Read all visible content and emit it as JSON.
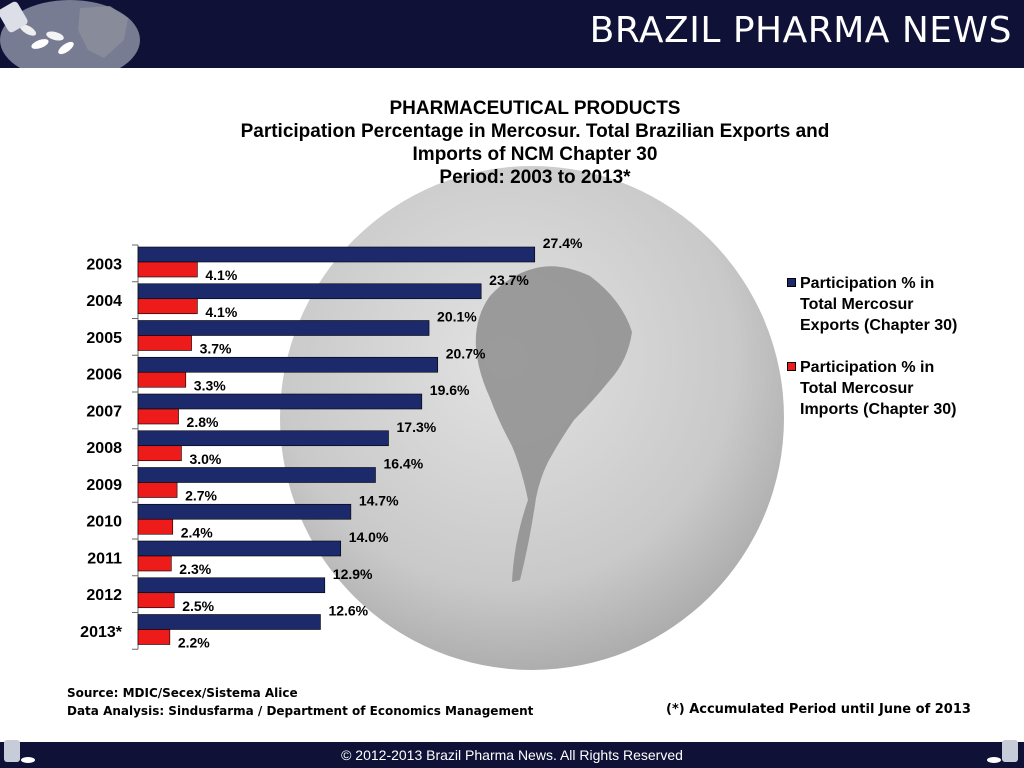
{
  "header": {
    "brand": "BRAZIL PHARMA NEWS"
  },
  "chart_data": {
    "type": "bar",
    "orientation": "horizontal",
    "title": [
      "PHARMACEUTICAL PRODUCTS",
      "Participation Percentage in Mercosur. Total  Brazilian Exports and",
      "Imports of NCM Chapter 30",
      "Period: 2003 to 2013*"
    ],
    "categories": [
      "2003",
      "2004",
      "2005",
      "2006",
      "2007",
      "2008",
      "2009",
      "2010",
      "2011",
      "2012",
      "2013*"
    ],
    "series": [
      {
        "name": "Participation % in Total Mercosur Exports (Chapter 30)",
        "color": "#1c2a6b",
        "values": [
          27.4,
          23.7,
          20.1,
          20.7,
          19.6,
          17.3,
          16.4,
          14.7,
          14.0,
          12.9,
          12.6
        ]
      },
      {
        "name": "Participation % in Total Mercosur Imports (Chapter 30)",
        "color": "#ee1b1b",
        "values": [
          4.1,
          4.1,
          3.7,
          3.3,
          2.8,
          3.0,
          2.7,
          2.4,
          2.3,
          2.5,
          2.2
        ]
      }
    ],
    "legend_lines": [
      [
        "Participation % in",
        "Total Mercosur",
        "Exports (Chapter 30)"
      ],
      [
        "Participation % in",
        "Total Mercosur",
        "Imports (Chapter 30)"
      ]
    ],
    "value_suffix": "%",
    "xlim": [
      0,
      28
    ],
    "grid": false,
    "legend_position": "right"
  },
  "source": {
    "line1": "Source: MDIC/Secex/Sistema Alice",
    "line2": "Data Analysis: Sindusfarma / Department of Economics Management"
  },
  "footnote": "(*) Accumulated Period until June of 2013",
  "footer": {
    "copyright": "© 2012-2013  Brazil Pharma News. All Rights Reserved"
  }
}
